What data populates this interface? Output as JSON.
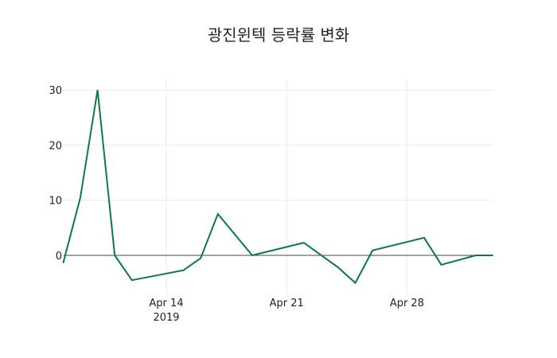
{
  "chart_data": {
    "type": "line",
    "title": "광진윈텍 등락률 변화",
    "xlabel": "",
    "ylabel": "",
    "x": [
      "2019-04-08",
      "2019-04-09",
      "2019-04-10",
      "2019-04-11",
      "2019-04-12",
      "2019-04-15",
      "2019-04-16",
      "2019-04-17",
      "2019-04-19",
      "2019-04-22",
      "2019-04-24",
      "2019-04-25",
      "2019-04-26",
      "2019-04-29",
      "2019-04-30",
      "2019-05-02",
      "2019-05-03"
    ],
    "series": [
      {
        "name": "등락률",
        "color": "#0a7d3e",
        "values": [
          -1.4,
          10.5,
          30.0,
          0.0,
          -4.5,
          -2.7,
          -0.5,
          7.5,
          0.0,
          2.3,
          -2.2,
          -5.0,
          0.9,
          3.2,
          -1.7,
          0.0,
          0.0
        ]
      }
    ],
    "x_ticks": [
      {
        "date": "2019-04-14",
        "label": "Apr 14",
        "sublabel": "2019"
      },
      {
        "date": "2019-04-21",
        "label": "Apr 21",
        "sublabel": ""
      },
      {
        "date": "2019-04-28",
        "label": "Apr 28",
        "sublabel": ""
      }
    ],
    "y_ticks": [
      0,
      10,
      20,
      30
    ],
    "ylim": [
      -7.1,
      31.9
    ],
    "xlim": [
      "2019-04-08",
      "2019-05-03"
    ],
    "grid": true,
    "zero_line": true,
    "legend": "none"
  }
}
